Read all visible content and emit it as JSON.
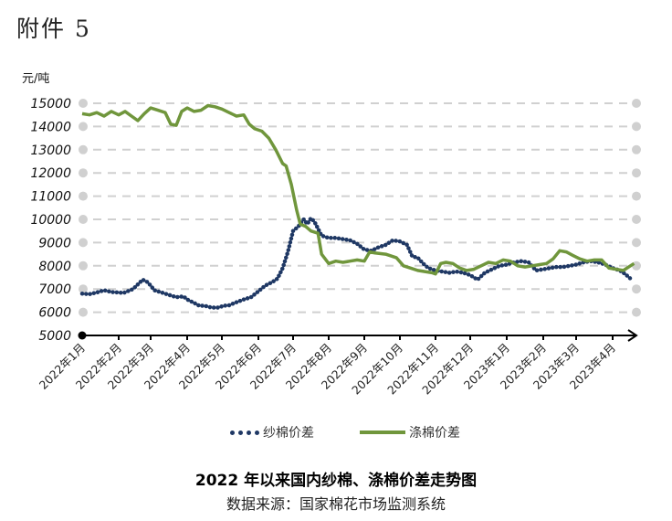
{
  "document": {
    "annex_label": "附件 5",
    "caption": "2022 年以来国内纱棉、涤棉价差走势图",
    "source": "数据来源：国家棉花市场监测系统"
  },
  "colors": {
    "yarn_cotton": "#1f3864",
    "polyester_cotton": "#70963c",
    "grid": "#d0d0d0"
  },
  "chart_data": {
    "type": "line",
    "title": "2022 年以来国内纱棉、涤棉价差走势图",
    "xlabel": "",
    "ylabel": "元/吨",
    "ylim": [
      5000,
      15000
    ],
    "yticks": [
      5000,
      6000,
      7000,
      8000,
      9000,
      10000,
      11000,
      12000,
      13000,
      14000,
      15000
    ],
    "grid": true,
    "legend_position": "bottom",
    "categories": [
      "2022年1月",
      "2022年2月",
      "2022年3月",
      "2022年4月",
      "2022年5月",
      "2022年6月",
      "2022年7月",
      "2022年8月",
      "2022年9月",
      "2022年10月",
      "2022年11月",
      "2022年12月",
      "2023年1月",
      "2023年2月",
      "2023年3月",
      "2023年4月"
    ],
    "x_note": "x values are fractional month index (0 = 2022年1月)",
    "series": [
      {
        "name": "纱棉价差",
        "style": "dotted",
        "points": [
          [
            0.0,
            6800
          ],
          [
            0.2,
            6780
          ],
          [
            0.4,
            6850
          ],
          [
            0.6,
            6950
          ],
          [
            0.8,
            6870
          ],
          [
            1.0,
            6850
          ],
          [
            1.15,
            6830
          ],
          [
            1.45,
            7000
          ],
          [
            1.6,
            7200
          ],
          [
            1.75,
            7400
          ],
          [
            1.9,
            7300
          ],
          [
            2.0,
            7150
          ],
          [
            2.1,
            6950
          ],
          [
            2.3,
            6850
          ],
          [
            2.5,
            6750
          ],
          [
            2.7,
            6650
          ],
          [
            2.9,
            6680
          ],
          [
            3.0,
            6550
          ],
          [
            3.2,
            6400
          ],
          [
            3.35,
            6280
          ],
          [
            3.5,
            6280
          ],
          [
            3.7,
            6200
          ],
          [
            3.9,
            6200
          ],
          [
            4.05,
            6280
          ],
          [
            4.2,
            6300
          ],
          [
            4.35,
            6400
          ],
          [
            4.6,
            6550
          ],
          [
            4.8,
            6650
          ],
          [
            5.0,
            6900
          ],
          [
            5.2,
            7150
          ],
          [
            5.4,
            7300
          ],
          [
            5.55,
            7450
          ],
          [
            5.7,
            7900
          ],
          [
            5.85,
            8600
          ],
          [
            6.0,
            9500
          ],
          [
            6.15,
            9700
          ],
          [
            6.3,
            10000
          ],
          [
            6.4,
            9800
          ],
          [
            6.5,
            10050
          ],
          [
            6.6,
            9900
          ],
          [
            6.7,
            9600
          ],
          [
            6.8,
            9300
          ],
          [
            7.0,
            9200
          ],
          [
            7.2,
            9200
          ],
          [
            7.4,
            9150
          ],
          [
            7.6,
            9100
          ],
          [
            7.8,
            8950
          ],
          [
            8.0,
            8700
          ],
          [
            8.2,
            8650
          ],
          [
            8.4,
            8800
          ],
          [
            8.6,
            8900
          ],
          [
            8.8,
            9100
          ],
          [
            9.0,
            9050
          ],
          [
            9.2,
            8900
          ],
          [
            9.35,
            8400
          ],
          [
            9.5,
            8350
          ],
          [
            9.65,
            8100
          ],
          [
            9.8,
            7900
          ],
          [
            10.0,
            7800
          ],
          [
            10.2,
            7750
          ],
          [
            10.4,
            7700
          ],
          [
            10.6,
            7750
          ],
          [
            10.8,
            7700
          ],
          [
            11.0,
            7600
          ],
          [
            11.2,
            7400
          ],
          [
            11.4,
            7700
          ],
          [
            11.6,
            7850
          ],
          [
            11.8,
            8000
          ],
          [
            12.0,
            8050
          ],
          [
            12.2,
            8150
          ],
          [
            12.4,
            8200
          ],
          [
            12.6,
            8150
          ],
          [
            12.8,
            7800
          ],
          [
            13.0,
            7850
          ],
          [
            13.2,
            7900
          ],
          [
            13.4,
            7950
          ],
          [
            13.6,
            7950
          ],
          [
            13.8,
            8000
          ],
          [
            14.0,
            8050
          ],
          [
            14.2,
            8150
          ],
          [
            14.4,
            8200
          ],
          [
            14.6,
            8150
          ],
          [
            14.8,
            8050
          ],
          [
            15.0,
            7900
          ],
          [
            15.2,
            7800
          ],
          [
            15.35,
            7650
          ],
          [
            15.5,
            7450
          ]
        ]
      },
      {
        "name": "涤棉价差",
        "style": "solid",
        "points": [
          [
            0.0,
            14550
          ],
          [
            0.2,
            14500
          ],
          [
            0.4,
            14600
          ],
          [
            0.6,
            14450
          ],
          [
            0.8,
            14650
          ],
          [
            1.0,
            14500
          ],
          [
            1.2,
            14650
          ],
          [
            1.4,
            14450
          ],
          [
            1.6,
            14250
          ],
          [
            1.8,
            14550
          ],
          [
            2.0,
            14800
          ],
          [
            2.2,
            14700
          ],
          [
            2.4,
            14600
          ],
          [
            2.55,
            14100
          ],
          [
            2.7,
            14050
          ],
          [
            2.85,
            14650
          ],
          [
            3.0,
            14800
          ],
          [
            3.2,
            14650
          ],
          [
            3.4,
            14700
          ],
          [
            3.6,
            14900
          ],
          [
            3.8,
            14850
          ],
          [
            4.0,
            14750
          ],
          [
            4.2,
            14600
          ],
          [
            4.4,
            14450
          ],
          [
            4.6,
            14500
          ],
          [
            4.75,
            14100
          ],
          [
            4.9,
            13900
          ],
          [
            5.1,
            13800
          ],
          [
            5.3,
            13500
          ],
          [
            5.5,
            13000
          ],
          [
            5.7,
            12400
          ],
          [
            5.8,
            12300
          ],
          [
            5.95,
            11500
          ],
          [
            6.1,
            10400
          ],
          [
            6.2,
            9800
          ],
          [
            6.35,
            9700
          ],
          [
            6.5,
            9500
          ],
          [
            6.7,
            9400
          ],
          [
            6.8,
            8500
          ],
          [
            7.0,
            8100
          ],
          [
            7.2,
            8200
          ],
          [
            7.4,
            8150
          ],
          [
            7.6,
            8200
          ],
          [
            7.8,
            8250
          ],
          [
            8.0,
            8200
          ],
          [
            8.15,
            8600
          ],
          [
            8.3,
            8550
          ],
          [
            8.6,
            8500
          ],
          [
            8.9,
            8350
          ],
          [
            9.1,
            8000
          ],
          [
            9.3,
            7900
          ],
          [
            9.5,
            7800
          ],
          [
            9.7,
            7750
          ],
          [
            9.9,
            7700
          ],
          [
            10.0,
            7650
          ],
          [
            10.15,
            8100
          ],
          [
            10.3,
            8150
          ],
          [
            10.5,
            8100
          ],
          [
            10.7,
            7900
          ],
          [
            10.9,
            7800
          ],
          [
            11.1,
            7850
          ],
          [
            11.3,
            8000
          ],
          [
            11.5,
            8150
          ],
          [
            11.7,
            8100
          ],
          [
            11.9,
            8250
          ],
          [
            12.1,
            8200
          ],
          [
            12.3,
            8000
          ],
          [
            12.5,
            7950
          ],
          [
            12.7,
            8000
          ],
          [
            12.9,
            8050
          ],
          [
            13.1,
            8100
          ],
          [
            13.3,
            8300
          ],
          [
            13.5,
            8650
          ],
          [
            13.7,
            8600
          ],
          [
            13.9,
            8450
          ],
          [
            14.1,
            8300
          ],
          [
            14.3,
            8200
          ],
          [
            14.5,
            8250
          ],
          [
            14.7,
            8250
          ],
          [
            14.9,
            7900
          ],
          [
            15.1,
            7850
          ],
          [
            15.3,
            7800
          ],
          [
            15.5,
            8000
          ],
          [
            15.6,
            8100
          ]
        ]
      }
    ]
  },
  "axis": {
    "unit": "元/吨"
  },
  "legend": {
    "items": [
      {
        "label": "纱棉价差",
        "marker": "dotted-line"
      },
      {
        "label": "涤棉价差",
        "marker": "solid-line"
      }
    ]
  }
}
